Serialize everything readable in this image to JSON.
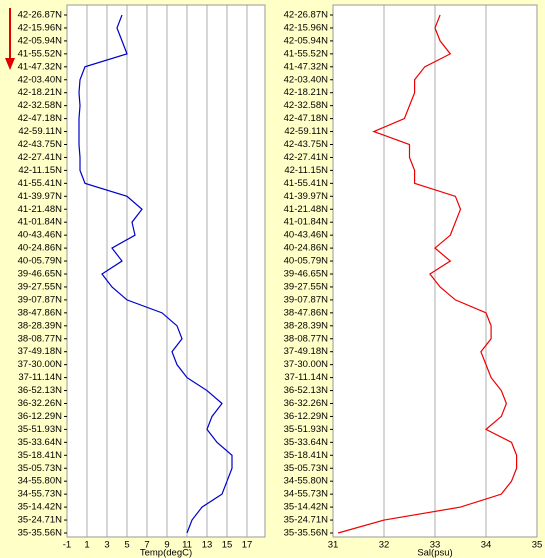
{
  "chart_data": [
    {
      "type": "line",
      "xlabel": "Temp(degC)",
      "color": "#0000cc",
      "categories": [
        "42-26.87N",
        "42-15.96N",
        "42-05.94N",
        "41-55.52N",
        "41-47.32N",
        "42-03.40N",
        "42-18.21N",
        "42-32.58N",
        "42-47.18N",
        "42-59.11N",
        "42-43.75N",
        "42-27.41N",
        "42-11.15N",
        "41-55.41N",
        "41-39.97N",
        "41-21.48N",
        "41-01.84N",
        "40-43.46N",
        "40-24.86N",
        "40-05.79N",
        "39-46.65N",
        "39-27.55N",
        "39-07.87N",
        "38-47.86N",
        "38-28.39N",
        "38-08.77N",
        "37-49.18N",
        "37-30.00N",
        "37-11.14N",
        "36-52.13N",
        "36-32.26N",
        "36-12.29N",
        "35-51.93N",
        "35-33.64N",
        "35-18.41N",
        "35-05.73N",
        "34-55.80N",
        "34-55.73N",
        "35-14.42N",
        "35-24.71N",
        "35-35.56N"
      ],
      "values": [
        4.5,
        4,
        4.5,
        5,
        0.8,
        0.3,
        0.2,
        0.3,
        0.2,
        0.2,
        0.2,
        0.3,
        0.3,
        0.8,
        5,
        6.5,
        5.5,
        5.8,
        3.5,
        4.5,
        2.5,
        3.5,
        5,
        8.5,
        10,
        10.5,
        9.5,
        10,
        11,
        13,
        14.5,
        13.5,
        13,
        14,
        15.5,
        15.5,
        15,
        14.5,
        12.5,
        11.5,
        11
      ],
      "xlim": [
        -1,
        18.8
      ],
      "xticks": [
        -1,
        1,
        3,
        5,
        7,
        9,
        11,
        13,
        15,
        17
      ],
      "grid": true
    },
    {
      "type": "line",
      "xlabel": "Sal(psu)",
      "color": "#ee0000",
      "categories": [
        "42-26.87N",
        "42-15.96N",
        "42-05.94N",
        "41-55.52N",
        "41-47.32N",
        "42-03.40N",
        "42-18.21N",
        "42-32.58N",
        "42-47.18N",
        "42-59.11N",
        "42-43.75N",
        "42-27.41N",
        "42-11.15N",
        "41-55.41N",
        "41-39.97N",
        "41-21.48N",
        "41-01.84N",
        "40-43.46N",
        "40-24.86N",
        "40-05.79N",
        "39-46.65N",
        "39-27.55N",
        "39-07.87N",
        "38-47.86N",
        "38-28.39N",
        "38-08.77N",
        "37-49.18N",
        "37-30.00N",
        "37-11.14N",
        "36-52.13N",
        "36-32.26N",
        "36-12.29N",
        "35-51.93N",
        "35-33.64N",
        "35-18.41N",
        "35-05.73N",
        "34-55.80N",
        "34-55.73N",
        "35-14.42N",
        "35-24.71N",
        "35-35.56N"
      ],
      "values": [
        33.1,
        33.0,
        33.1,
        33.3,
        32.8,
        32.6,
        32.6,
        32.5,
        32.4,
        31.8,
        32.5,
        32.5,
        32.6,
        32.6,
        33.4,
        33.5,
        33.4,
        33.3,
        33.0,
        33.3,
        32.9,
        33.1,
        33.4,
        34.0,
        34.1,
        34.1,
        33.9,
        34.0,
        34.1,
        34.3,
        34.4,
        34.3,
        34.0,
        34.5,
        34.6,
        34.6,
        34.5,
        34.3,
        33.5,
        32.0,
        31.1
      ],
      "xlim": [
        31,
        35
      ],
      "xticks": [
        31,
        32,
        33,
        34,
        35
      ],
      "grid": true
    }
  ]
}
